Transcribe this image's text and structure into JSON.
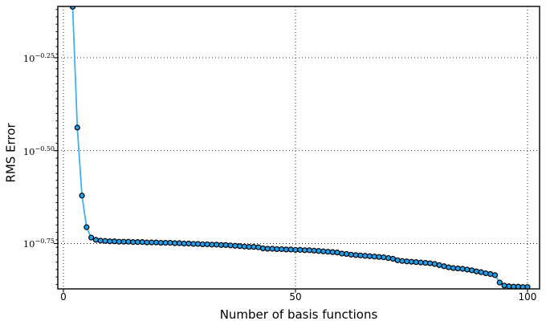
{
  "chart_data": {
    "type": "line",
    "title": "",
    "xlabel": "Number of basis functions",
    "ylabel": "RMS Error",
    "y_scale": "log10",
    "x": [
      2,
      3,
      4,
      5,
      6,
      7,
      8,
      9,
      10,
      11,
      12,
      13,
      14,
      15,
      16,
      17,
      18,
      19,
      20,
      21,
      22,
      23,
      24,
      25,
      26,
      27,
      28,
      29,
      30,
      31,
      32,
      33,
      34,
      35,
      36,
      37,
      38,
      39,
      40,
      41,
      42,
      43,
      44,
      45,
      46,
      47,
      48,
      49,
      50,
      51,
      52,
      53,
      54,
      55,
      56,
      57,
      58,
      59,
      60,
      61,
      62,
      63,
      64,
      65,
      66,
      67,
      68,
      69,
      70,
      71,
      72,
      73,
      74,
      75,
      76,
      77,
      78,
      79,
      80,
      81,
      82,
      83,
      84,
      85,
      86,
      87,
      88,
      89,
      90,
      91,
      92,
      93,
      94,
      95,
      96,
      97,
      98,
      99,
      100
    ],
    "y_log10_exponents": [
      -0.113,
      -0.438,
      -0.621,
      -0.706,
      -0.734,
      -0.74,
      -0.742,
      -0.743,
      -0.744,
      -0.744,
      -0.745,
      -0.745,
      -0.745,
      -0.746,
      -0.746,
      -0.746,
      -0.747,
      -0.747,
      -0.747,
      -0.748,
      -0.748,
      -0.748,
      -0.749,
      -0.749,
      -0.75,
      -0.75,
      -0.751,
      -0.751,
      -0.752,
      -0.752,
      -0.753,
      -0.753,
      -0.754,
      -0.754,
      -0.755,
      -0.756,
      -0.757,
      -0.758,
      -0.759,
      -0.759,
      -0.76,
      -0.763,
      -0.764,
      -0.764,
      -0.765,
      -0.765,
      -0.766,
      -0.766,
      -0.767,
      -0.767,
      -0.768,
      -0.768,
      -0.769,
      -0.77,
      -0.771,
      -0.772,
      -0.773,
      -0.774,
      -0.777,
      -0.778,
      -0.78,
      -0.781,
      -0.782,
      -0.783,
      -0.784,
      -0.785,
      -0.786,
      -0.787,
      -0.789,
      -0.791,
      -0.795,
      -0.797,
      -0.798,
      -0.799,
      -0.8,
      -0.801,
      -0.802,
      -0.803,
      -0.805,
      -0.808,
      -0.811,
      -0.814,
      -0.816,
      -0.817,
      -0.818,
      -0.82,
      -0.822,
      -0.825,
      -0.827,
      -0.83,
      -0.832,
      -0.835,
      -0.855,
      -0.863,
      -0.865,
      -0.866,
      -0.866,
      -0.867,
      -0.867
    ],
    "xlim": [
      -1.2,
      102.6
    ],
    "ylim_exponents": [
      -0.872,
      -0.112
    ],
    "xticks": [
      {
        "value": 0,
        "label": "0"
      },
      {
        "value": 50,
        "label": "50"
      },
      {
        "value": 100,
        "label": "100"
      }
    ],
    "yticks": [
      {
        "exponent": -0.25,
        "base": "10",
        "sup": "−0.25"
      },
      {
        "exponent": -0.5,
        "base": "10",
        "sup": "−0.50"
      },
      {
        "exponent": -0.75,
        "base": "10",
        "sup": "−0.75"
      }
    ],
    "minor_tick_step_exponent": 0.02,
    "grid": {
      "show": true,
      "style": "dotted",
      "color": "#000000"
    },
    "legend": null,
    "marker": "o",
    "colors": {
      "line": "#3DB1F2",
      "marker_fill": "#1E9FF0",
      "marker_edge": "#000000",
      "axes": "#000000",
      "text": "#000000"
    }
  }
}
